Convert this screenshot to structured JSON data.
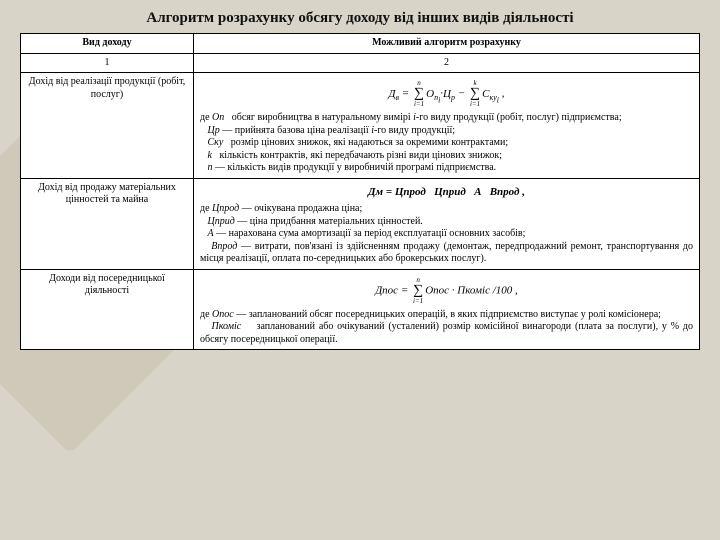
{
  "title": "Алгоритм розрахунку обсягу доходу від інших видів діяльності",
  "header": {
    "col1": "Вид доходу",
    "col2": "Можливий алгоритм розрахунку"
  },
  "subheader": {
    "c1": "1",
    "c2": "2"
  },
  "row1": {
    "label": "Дохід від реалізації продукції (робіт, послуг)",
    "formula_html": "<span class='var'>Д<span class='sub'>в</span></span> = <span class='sigma'><span class='top'>n</span><span class='mid'>∑</span><span class='bot'>i=1</span></span><span class='var'>О<span class='sub'>п<span class='sub'>i</span></span></span>·<span class='var'>Ц<span class='sub'>р</span></span> − <span class='sigma'><span class='top'>k</span><span class='mid'>∑</span><span class='bot'>i=1</span></span><span class='var'>С<span class='sub'>ку<span class='sub'>i</span></span></span> ,",
    "desc_html": "де <span class='var'>Оп</span> &nbsp; обсяг виробництва в натуральному вимірі <span class='var'>i</span>-го виду продукції (робіт, послуг) підприємства;<br>&nbsp;&nbsp;&nbsp;<span class='var'>Цр</span> — прийнята базова ціна реалізації <span class='var'>i</span>-го виду продукції;<br>&nbsp;&nbsp;&nbsp;<span class='var'>Ску</span> &nbsp; розмір цінових знижок, які надаються за окремими контрактами;<br>&nbsp;&nbsp;&nbsp;<span class='var'>k</span> &nbsp; кількість контрактів, які передбачають різні види цінових знижок;<br>&nbsp;&nbsp;&nbsp;<span class='var'>n</span> — кількість видів продукції у виробничій програмі підприємства."
  },
  "row2": {
    "label": "Дохід від продажу матеріальних цінностей та майна",
    "formula_html": "<b><span class='var'>Дм</span> = <span class='var'>Цпрод</span> &nbsp; <span class='var'>Цприд</span> &nbsp; <span class='var'>А</span> &nbsp; <span class='var'>Впрод</span> ,</b>",
    "desc_html": "де <span class='var'>Цпрод</span> — очікувана продажна ціна;<br>&nbsp;&nbsp;&nbsp;<span class='var'>Цприд</span> — ціна придбання матеріальних цінностей.<br>&nbsp;&nbsp;&nbsp;<span class='var'>А</span> — нарахована сума амортизації за період експлуатації основних засобів;<br>&nbsp;&nbsp;&nbsp;<span class='var'>Впрод</span> — витрати, пов'язані із здійсненням продажу (демонтаж, передпродажний ремонт, транспортування до місця реалізації, оплата по-середницьких або брокерських послуг)."
  },
  "row3": {
    "label": "Доходи від посередницької діяльності",
    "formula_html": "<span class='var'>Дпос</span> = <span class='sigma'><span class='top'>n</span><span class='mid'>∑</span><span class='bot'>i=1</span></span><span class='var'>Опос</span> · <span class='var'>Пкоміс</span> /100 ,",
    "desc_html": "де <span class='var'>Опос</span> — запланований обсяг посередницьких операцій, в яких підприємство виступає у ролі комісіонера;<br>&nbsp;&nbsp;&nbsp;<span class='var'>Пкоміс</span> &nbsp;&nbsp; запланований або очікуваний (усталений) розмір комісійної винагороди (плата за послуги), у % до обсягу посередницької операції."
  }
}
